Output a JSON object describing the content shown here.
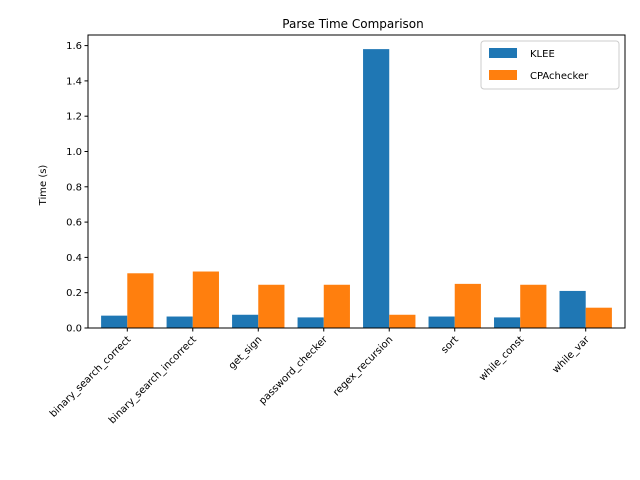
{
  "chart_data": {
    "type": "bar",
    "title": "Parse Time Comparison",
    "xlabel": "",
    "ylabel": "Time (s)",
    "ylim": [
      0,
      1.66
    ],
    "yticks": [
      "0.0",
      "0.2",
      "0.4",
      "0.6",
      "0.8",
      "1.0",
      "1.2",
      "1.4",
      "1.6"
    ],
    "categories": [
      "binary_search_correct",
      "binary_search_incorrect",
      "get_sign",
      "password_checker",
      "regex_recursion",
      "sort",
      "while_const",
      "while_var"
    ],
    "series": [
      {
        "name": "KLEE",
        "color": "#1f77b4",
        "values": [
          0.07,
          0.065,
          0.075,
          0.06,
          1.58,
          0.065,
          0.06,
          0.21
        ]
      },
      {
        "name": "CPAchecker",
        "color": "#ff7f0e",
        "values": [
          0.31,
          0.32,
          0.245,
          0.245,
          0.075,
          0.25,
          0.245,
          0.115
        ]
      }
    ],
    "legend_position": "top-right",
    "grid": false
  }
}
